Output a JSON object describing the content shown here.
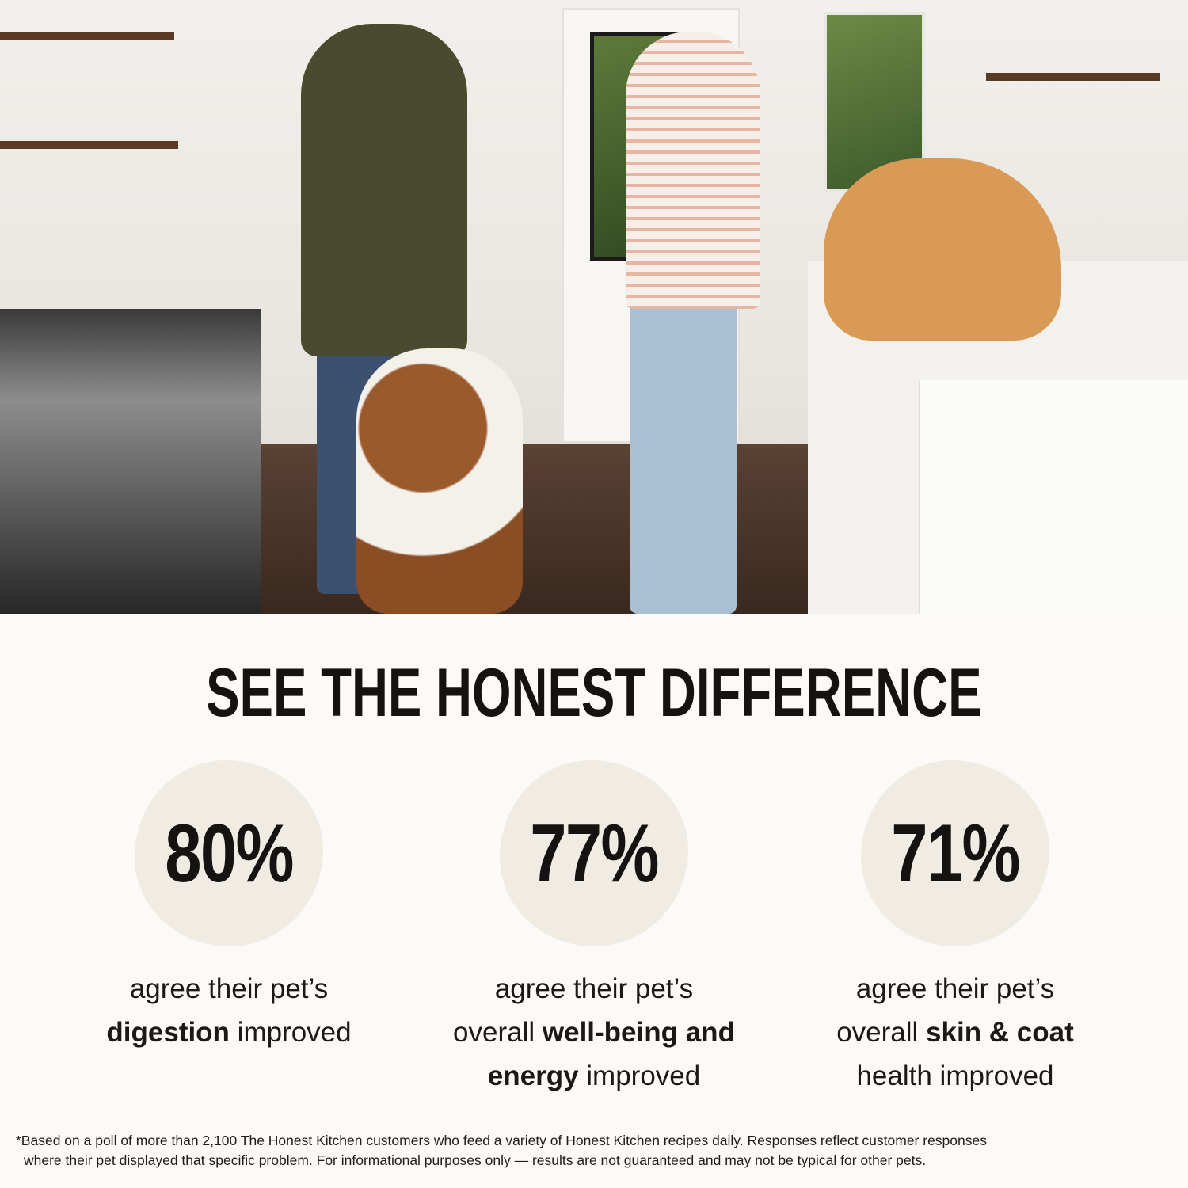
{
  "hero_photo": {
    "description_icon": "kitchen-photo"
  },
  "headline": "SEE THE HONEST DIFFERENCE",
  "stats": [
    {
      "value": "80%",
      "lines": [
        [
          {
            "t": "agree their pet’s",
            "b": false
          }
        ],
        [
          {
            "t": "digestion",
            "b": true
          },
          {
            "t": " improved",
            "b": false
          }
        ]
      ]
    },
    {
      "value": "77%",
      "lines": [
        [
          {
            "t": "agree their pet’s",
            "b": false
          }
        ],
        [
          {
            "t": "overall ",
            "b": false
          },
          {
            "t": "well-being and",
            "b": true
          }
        ],
        [
          {
            "t": "energy",
            "b": true
          },
          {
            "t": " improved",
            "b": false
          }
        ]
      ]
    },
    {
      "value": "71%",
      "lines": [
        [
          {
            "t": "agree their pet’s",
            "b": false
          }
        ],
        [
          {
            "t": "overall ",
            "b": false
          },
          {
            "t": "skin & coat",
            "b": true
          }
        ],
        [
          {
            "t": "health improved",
            "b": false
          }
        ]
      ]
    }
  ],
  "footnote": {
    "line1": "*Based on a poll of more than 2,100 The Honest Kitchen customers who feed a variety of Honest Kitchen recipes daily. Responses reflect customer responses",
    "line2": "where their pet displayed that specific problem. For informational purposes only — results are not guaranteed and may not be typical for other pets."
  },
  "colors": {
    "background": "#fcfaf6",
    "blob": "#f1ece3",
    "text": "#151312"
  }
}
